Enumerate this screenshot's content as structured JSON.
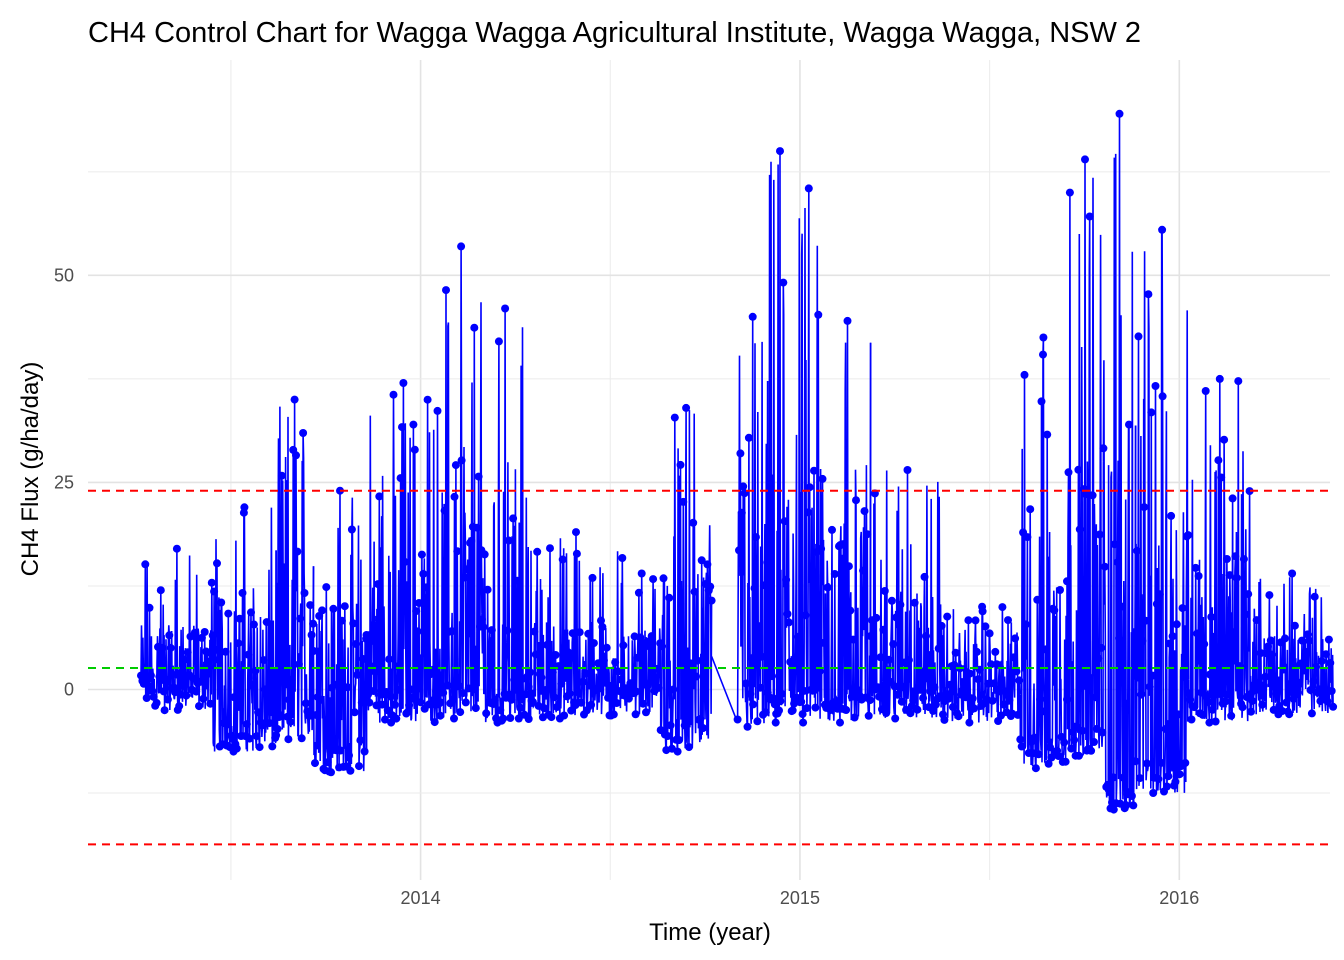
{
  "chart_data": {
    "type": "line",
    "title": "CH4 Control Chart for Wagga Wagga Agricultural Institute, Wagga Wagga, NSW 2",
    "xlabel": "Time (year)",
    "ylabel": "CH4 Flux (g/ha/day)",
    "x_range": [
      "2013-02-15",
      "2016-05-25"
    ],
    "ylim": [
      -23,
      76
    ],
    "x_ticks": [
      {
        "date": "2014-01-01",
        "label": "2014"
      },
      {
        "date": "2015-01-01",
        "label": "2015"
      },
      {
        "date": "2016-01-01",
        "label": "2016"
      }
    ],
    "y_ticks": [
      {
        "value": 0,
        "label": "0"
      },
      {
        "value": 25,
        "label": "25"
      },
      {
        "value": 50,
        "label": "50"
      }
    ],
    "reference_lines": [
      {
        "kind": "upper-control-limit",
        "value": 24,
        "color": "#ff0000"
      },
      {
        "kind": "mean",
        "value": 2.6,
        "color": "#00cc00"
      },
      {
        "kind": "lower-control-limit",
        "value": -18.7,
        "color": "#ff0000"
      }
    ],
    "series_color": "#0000ff",
    "data_gap": [
      "2014-10-08",
      "2014-11-02"
    ],
    "segments": [
      {
        "start": "2013-04-07",
        "end": "2013-06-15",
        "min": -2.5,
        "max": 17
      },
      {
        "start": "2013-06-15",
        "end": "2013-08-15",
        "min": -7.5,
        "max": 22
      },
      {
        "start": "2013-08-15",
        "end": "2013-09-20",
        "min": -6,
        "max": 35
      },
      {
        "start": "2013-09-20",
        "end": "2013-11-10",
        "min": -10,
        "max": 24
      },
      {
        "start": "2013-11-10",
        "end": "2014-01-20",
        "min": -4,
        "max": 37
      },
      {
        "start": "2014-01-20",
        "end": "2014-03-01",
        "min": -3.5,
        "max": 53.5
      },
      {
        "start": "2014-03-01",
        "end": "2014-04-15",
        "min": -4,
        "max": 46
      },
      {
        "start": "2014-04-15",
        "end": "2014-07-15",
        "min": -3.5,
        "max": 19
      },
      {
        "start": "2014-07-15",
        "end": "2014-08-20",
        "min": -3,
        "max": 14
      },
      {
        "start": "2014-08-20",
        "end": "2014-10-08",
        "min": -7.5,
        "max": 34
      },
      {
        "start": "2014-11-02",
        "end": "2014-12-01",
        "min": -4.5,
        "max": 45
      },
      {
        "start": "2014-12-01",
        "end": "2014-12-25",
        "min": -4,
        "max": 65
      },
      {
        "start": "2014-12-25",
        "end": "2015-01-25",
        "min": -4,
        "max": 60.5
      },
      {
        "start": "2015-01-25",
        "end": "2015-03-10",
        "min": -4,
        "max": 44.5
      },
      {
        "start": "2015-03-10",
        "end": "2015-05-20",
        "min": -3.5,
        "max": 26.5
      },
      {
        "start": "2015-05-20",
        "end": "2015-08-01",
        "min": -4,
        "max": 10
      },
      {
        "start": "2015-08-01",
        "end": "2015-09-15",
        "min": -9.5,
        "max": 42.5
      },
      {
        "start": "2015-09-15",
        "end": "2015-10-20",
        "min": -8,
        "max": 64
      },
      {
        "start": "2015-10-20",
        "end": "2015-11-20",
        "min": -14.5,
        "max": 69.5
      },
      {
        "start": "2015-11-20",
        "end": "2016-01-10",
        "min": -12.5,
        "max": 55.5
      },
      {
        "start": "2016-01-10",
        "end": "2016-03-10",
        "min": -4,
        "max": 37.5
      },
      {
        "start": "2016-03-10",
        "end": "2016-05-28",
        "min": -3,
        "max": 14
      }
    ]
  }
}
